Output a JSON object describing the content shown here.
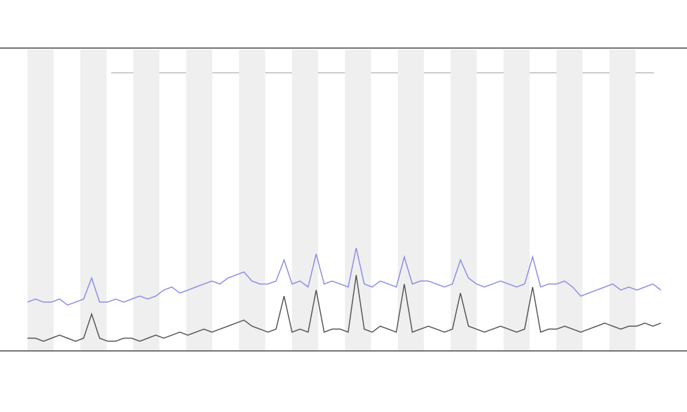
{
  "chart_data": {
    "type": "line",
    "ylim": [
      0,
      100
    ],
    "series": [
      {
        "color": "#555555",
        "values": [
          4,
          4,
          3,
          4,
          5,
          4,
          3,
          4,
          12,
          4,
          3,
          3,
          4,
          4,
          3,
          4,
          5,
          4,
          5,
          6,
          5,
          6,
          7,
          6,
          7,
          8,
          9,
          10,
          8,
          7,
          6,
          7,
          18,
          6,
          7,
          6,
          20,
          6,
          7,
          7,
          6,
          25,
          7,
          6,
          8,
          7,
          6,
          22,
          6,
          7,
          8,
          7,
          6,
          7,
          19,
          8,
          7,
          6,
          7,
          8,
          7,
          6,
          7,
          21,
          6,
          7,
          7,
          8,
          7,
          6,
          7,
          8,
          9,
          8,
          7,
          8,
          8,
          9,
          8,
          9
        ]
      },
      {
        "color": "#8c8ce6",
        "values": [
          16,
          17,
          16,
          16,
          17,
          15,
          16,
          17,
          24,
          16,
          16,
          17,
          16,
          17,
          18,
          17,
          18,
          20,
          21,
          19,
          20,
          21,
          22,
          23,
          22,
          24,
          25,
          26,
          23,
          22,
          22,
          23,
          30,
          22,
          23,
          21,
          32,
          22,
          23,
          22,
          21,
          34,
          22,
          21,
          23,
          22,
          21,
          31,
          22,
          23,
          23,
          22,
          21,
          22,
          30,
          24,
          22,
          21,
          22,
          23,
          22,
          21,
          22,
          31,
          21,
          22,
          22,
          23,
          21,
          18,
          19,
          20,
          21,
          22,
          20,
          21,
          20,
          21,
          22,
          20
        ]
      }
    ]
  }
}
